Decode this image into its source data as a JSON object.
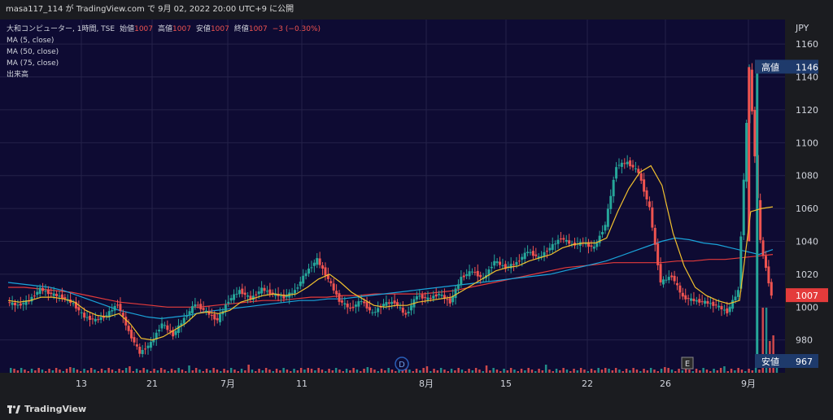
{
  "header": {
    "publish_line": "masa117_114 が TradingView.com で 9月 02, 2022 20:00 UTC+9 に公開"
  },
  "legend": {
    "symbol_line": "大和コンピューター, 1時間, TSE",
    "open_label": "始値",
    "open_value": "1007",
    "high_label": "高値",
    "high_value": "1007",
    "low_label": "安値",
    "low_value": "1007",
    "close_label": "終値",
    "close_value": "1007",
    "change": "−3 (−0.30%)",
    "indicators": [
      "MA (5, close)",
      "MA (50, close)",
      "MA (75, close)",
      "出来高"
    ]
  },
  "price_axis": {
    "currency": "JPY",
    "ticks": [
      "1160",
      "1140",
      "1120",
      "1100",
      "1080",
      "1060",
      "1040",
      "1020",
      "1000",
      "980"
    ]
  },
  "time_axis": {
    "ticks": [
      "13",
      "21",
      "7月",
      "11",
      "8月",
      "15",
      "22",
      "26",
      "9月"
    ]
  },
  "markers": {
    "dividend": "D",
    "earnings": "E"
  },
  "price_labels": {
    "high_label": "高値",
    "high_value": "1146",
    "last_value": "1007",
    "low_label": "安値",
    "low_value": "967"
  },
  "branding": {
    "name": "TradingView"
  },
  "colors": {
    "background": "#0e0b33",
    "grid": "#242249",
    "text": "#d1d4dc",
    "up": "#26a69a",
    "down": "#ef5350",
    "ma5": "#f2c12e",
    "ma50": "#1aa3d9",
    "ma75": "#e43b3b",
    "last_price_bg": "#e43b3b",
    "badge_bg": "#1e3a6b"
  },
  "chart_data": {
    "type": "candlestick",
    "title": "大和コンピューター, 1時間, TSE",
    "ylabel": "JPY",
    "ylim": [
      962,
      1168
    ],
    "x_categories": [
      "13",
      "21",
      "7月",
      "11",
      "8月",
      "15",
      "22",
      "26",
      "9月"
    ],
    "close_path": [
      1003,
      1001,
      1004,
      1011,
      1008,
      1006,
      1002,
      994,
      992,
      995,
      1002,
      985,
      972,
      978,
      990,
      983,
      993,
      1002,
      997,
      992,
      1004,
      1010,
      1005,
      1011,
      1008,
      1006,
      1010,
      1021,
      1029,
      1017,
      1004,
      999,
      1004,
      996,
      1002,
      1003,
      995,
      1007,
      1005,
      1008,
      1003,
      1018,
      1022,
      1017,
      1028,
      1024,
      1027,
      1034,
      1030,
      1036,
      1042,
      1038,
      1039,
      1036,
      1050,
      1086,
      1088,
      1082,
      1060,
      1015,
      1019,
      1006,
      1004,
      1003,
      1001,
      997,
      1010,
      1145,
      1040,
      1007
    ],
    "high": 1146,
    "low": 967,
    "last": 1007,
    "ma5_path": [
      1004,
      1003,
      1004,
      1006,
      1006,
      1005,
      1003,
      998,
      995,
      994,
      996,
      990,
      981,
      980,
      982,
      986,
      990,
      996,
      997,
      996,
      998,
      1003,
      1005,
      1007,
      1008,
      1007,
      1008,
      1012,
      1017,
      1020,
      1015,
      1009,
      1005,
      1001,
      1000,
      1001,
      1001,
      1003,
      1004,
      1005,
      1006,
      1010,
      1014,
      1018,
      1022,
      1024,
      1025,
      1028,
      1030,
      1032,
      1036,
      1038,
      1039,
      1039,
      1042,
      1058,
      1072,
      1082,
      1086,
      1074,
      1045,
      1025,
      1012,
      1007,
      1004,
      1002,
      1004,
      1058,
      1060,
      1061
    ],
    "ma50_path": [
      1015,
      1014,
      1013,
      1012,
      1010,
      1007,
      1004,
      1001,
      998,
      996,
      994,
      993,
      994,
      995,
      997,
      998,
      999,
      1000,
      1001,
      1002,
      1003,
      1004,
      1004,
      1005,
      1005,
      1006,
      1007,
      1008,
      1009,
      1010,
      1011,
      1012,
      1013,
      1014,
      1015,
      1016,
      1017,
      1018,
      1019,
      1020,
      1022,
      1024,
      1026,
      1028,
      1031,
      1034,
      1037,
      1040,
      1042,
      1041,
      1039,
      1038,
      1036,
      1034,
      1032,
      1035
    ],
    "ma75_path": [
      1012,
      1012,
      1011,
      1010,
      1009,
      1007,
      1005,
      1003,
      1002,
      1001,
      1000,
      1000,
      1000,
      1001,
      1002,
      1003,
      1004,
      1004,
      1005,
      1006,
      1006,
      1007,
      1007,
      1008,
      1008,
      1008,
      1008,
      1009,
      1010,
      1012,
      1014,
      1016,
      1018,
      1020,
      1022,
      1024,
      1025,
      1026,
      1027,
      1027,
      1027,
      1027,
      1028,
      1028,
      1029,
      1029,
      1030,
      1031,
      1032
    ]
  }
}
